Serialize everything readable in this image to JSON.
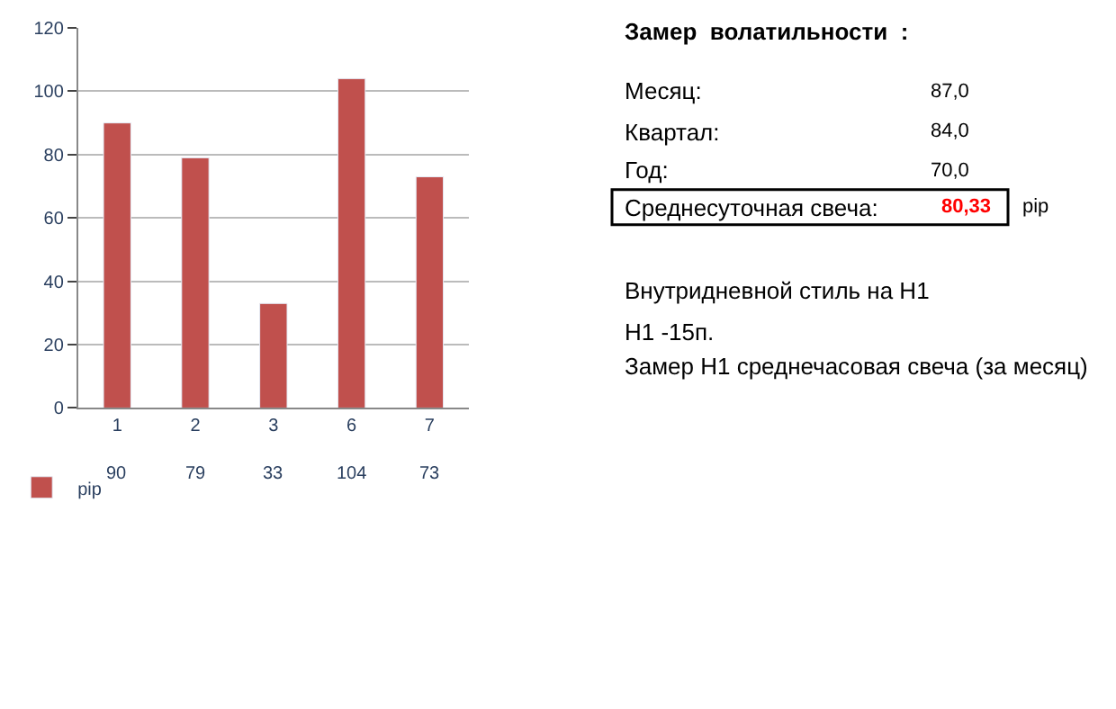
{
  "chart_data": {
    "type": "bar",
    "categories": [
      "1",
      "2",
      "3",
      "6",
      "7"
    ],
    "series": [
      {
        "name": "pip",
        "color": "#c0504d",
        "values": [
          90,
          79,
          33,
          104,
          73
        ]
      }
    ],
    "ylim": [
      0,
      120
    ],
    "yticks": [
      0,
      20,
      40,
      60,
      80,
      100,
      120
    ],
    "grid": "y",
    "legend": "bottom left",
    "data_labels": true,
    "annotations": [
      "Замер  волатильности  :",
      "Месяц:",
      "87,0",
      "Квартал:",
      "84,0",
      "Год:",
      "70,0",
      "Среднесуточная свеча:",
      "80,33",
      "pip",
      "Внутридневной стиль на H1",
      "H1 -15п.",
      "Замер H1 среднечасовая свеча (за месяц)"
    ]
  }
}
